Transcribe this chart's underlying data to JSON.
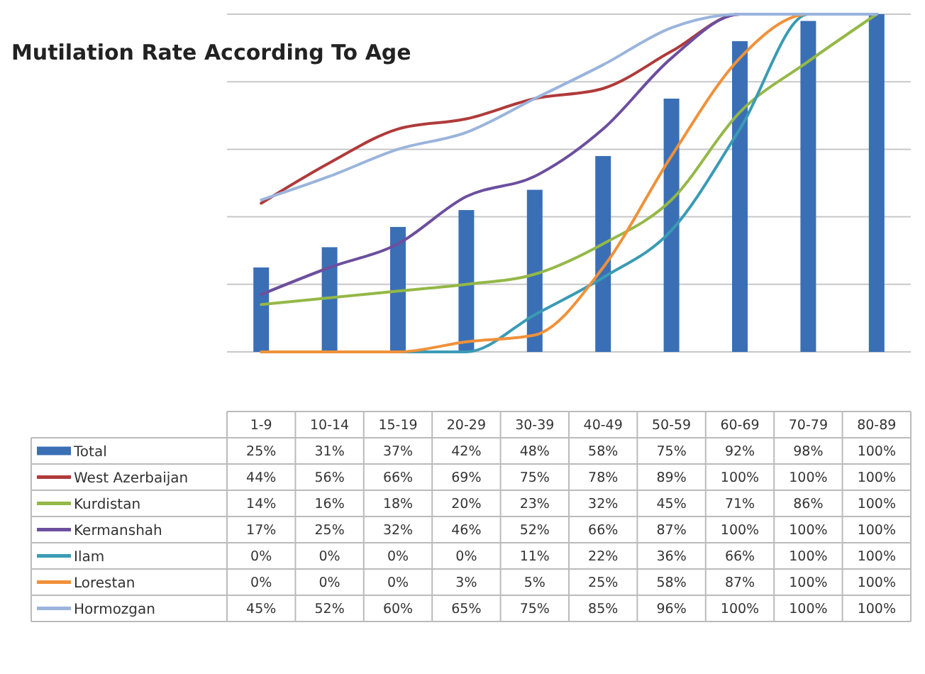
{
  "chart_data": {
    "type": "bar",
    "title": "Mutilation Rate According To Age",
    "categories": [
      "1-9",
      "10-14",
      "15-19",
      "20-29",
      "30-39",
      "40-49",
      "50-59",
      "60-69",
      "70-79",
      "80-89"
    ],
    "ylim": [
      0,
      100
    ],
    "yticks": [
      {
        "value": 0,
        "label": null
      },
      {
        "value": 20,
        "label": null
      },
      {
        "value": 40,
        "label": null
      },
      {
        "value": 60,
        "label": null
      },
      {
        "value": 80,
        "label": null
      },
      {
        "value": 100,
        "label": null
      }
    ],
    "grid": "y",
    "legend": "bottom",
    "tick_labels": "x",
    "series": [
      {
        "name": "Total",
        "color": "#3a6fb5",
        "values": [
          25,
          31,
          37,
          42,
          48,
          58,
          75,
          92,
          98,
          100
        ],
        "value_labels": [
          "25%",
          "31%",
          "37%",
          "42%",
          "48%",
          "58%",
          "75%",
          "92%",
          "98%",
          "100%"
        ]
      },
      {
        "name": "West Azerbaijan",
        "type": "line",
        "color": "#b03a3a",
        "values": [
          44,
          56,
          66,
          69,
          75,
          78,
          89,
          100,
          100,
          100
        ],
        "value_labels": [
          "44%",
          "56%",
          "66%",
          "69%",
          "75%",
          "78%",
          "89%",
          "100%",
          "100%",
          "100%"
        ]
      },
      {
        "name": "Kurdistan",
        "type": "line",
        "color": "#94b847",
        "values": [
          14,
          16,
          18,
          20,
          23,
          32,
          45,
          71,
          86,
          100
        ],
        "value_labels": [
          "14%",
          "16%",
          "18%",
          "20%",
          "23%",
          "32%",
          "45%",
          "71%",
          "86%",
          "100%"
        ]
      },
      {
        "name": "Kermanshah",
        "type": "line",
        "color": "#6c4f9e",
        "values": [
          17,
          25,
          32,
          46,
          52,
          66,
          87,
          100,
          100,
          100
        ],
        "value_labels": [
          "17%",
          "25%",
          "32%",
          "46%",
          "52%",
          "66%",
          "87%",
          "100%",
          "100%",
          "100%"
        ]
      },
      {
        "name": "Ilam",
        "type": "line",
        "color": "#3a9bb5",
        "values": [
          0,
          0,
          0,
          0,
          11,
          22,
          36,
          66,
          100,
          100
        ],
        "value_labels": [
          "0%",
          "0%",
          "0%",
          "0%",
          "11%",
          "22%",
          "36%",
          "66%",
          "100%",
          "100%"
        ]
      },
      {
        "name": "Lorestan",
        "type": "line",
        "color": "#f0913a",
        "values": [
          0,
          0,
          0,
          3,
          5,
          25,
          58,
          87,
          100,
          100
        ],
        "value_labels": [
          "0%",
          "0%",
          "0%",
          "3%",
          "5%",
          "25%",
          "58%",
          "87%",
          "100%",
          "100%"
        ]
      },
      {
        "name": "Hormozgan",
        "type": "line",
        "color": "#9ab4dc",
        "values": [
          45,
          52,
          60,
          65,
          75,
          85,
          96,
          100,
          100,
          100
        ],
        "value_labels": [
          "45%",
          "52%",
          "60%",
          "65%",
          "75%",
          "85%",
          "96%",
          "100%",
          "100%",
          "100%"
        ]
      }
    ]
  }
}
